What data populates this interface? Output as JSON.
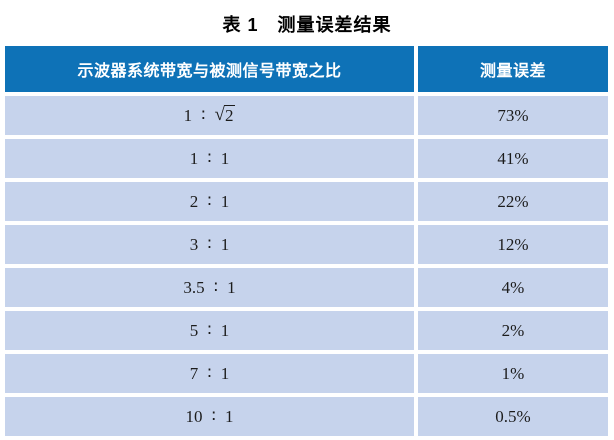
{
  "title": "表 1　测量误差结果",
  "table": {
    "col1_header": "示波器系统带宽与被测信号带宽之比",
    "col2_header": "测量误差",
    "separator": "∶",
    "rows": [
      {
        "left": "1",
        "right": "2",
        "right_sqrt": true,
        "error": "73%"
      },
      {
        "left": "1",
        "right": "1",
        "right_sqrt": false,
        "error": "41%"
      },
      {
        "left": "2",
        "right": "1",
        "right_sqrt": false,
        "error": "22%"
      },
      {
        "left": "3",
        "right": "1",
        "right_sqrt": false,
        "error": "12%"
      },
      {
        "left": "3.5",
        "right": "1",
        "right_sqrt": false,
        "error": "4%"
      },
      {
        "left": "5",
        "right": "1",
        "right_sqrt": false,
        "error": "2%"
      },
      {
        "left": "7",
        "right": "1",
        "right_sqrt": false,
        "error": "1%"
      },
      {
        "left": "10",
        "right": "1",
        "right_sqrt": false,
        "error": "0.5%"
      }
    ]
  },
  "colors": {
    "header_bg": "#0e72b7",
    "row_bg": "#c6d3ec",
    "header_text": "#ffffff",
    "body_text": "#1c1c1c",
    "title_text": "#000000"
  }
}
